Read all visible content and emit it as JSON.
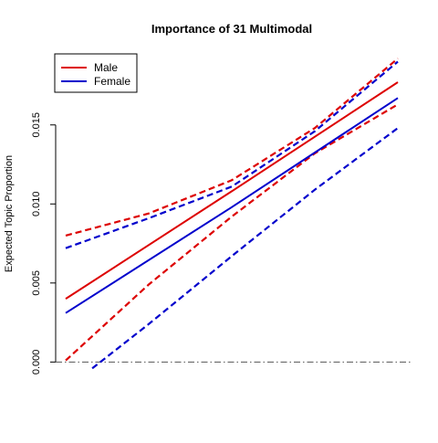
{
  "chart_data": {
    "type": "line",
    "title": "Importance of 31 Multimodal",
    "xlabel": "",
    "ylabel": "Expected Topic Proportion",
    "x_axis_shown": false,
    "xlim": [
      0,
      1
    ],
    "ylim": [
      -0.0005,
      0.0188
    ],
    "yticks": [
      {
        "value": 0.0,
        "label": "0.000"
      },
      {
        "value": 0.005,
        "label": "0.005"
      },
      {
        "value": 0.01,
        "label": "0.010"
      },
      {
        "value": 0.015,
        "label": "0.015"
      }
    ],
    "reference_line": {
      "y": 0.0,
      "style": "dashdot",
      "color": "#555555"
    },
    "grid": false,
    "legend": {
      "position": "top-left",
      "entries": [
        "Male",
        "Female"
      ]
    },
    "series": [
      {
        "name": "Male",
        "color": "#dd0000",
        "mean": [
          [
            0,
            0.004
          ],
          [
            0.5,
            0.0108
          ],
          [
            1,
            0.0177
          ]
        ],
        "upper": [
          [
            0,
            0.008
          ],
          [
            0.25,
            0.0094
          ],
          [
            0.5,
            0.0115
          ],
          [
            0.75,
            0.0148
          ],
          [
            1,
            0.0192
          ]
        ],
        "lower": [
          [
            0,
            0.0001
          ],
          [
            0.25,
            0.0049
          ],
          [
            0.5,
            0.0092
          ],
          [
            0.75,
            0.0132
          ],
          [
            1,
            0.0163
          ]
        ]
      },
      {
        "name": "Female",
        "color": "#0000cc",
        "mean": [
          [
            0,
            0.0031
          ],
          [
            0.5,
            0.0098
          ],
          [
            1,
            0.0167
          ]
        ],
        "upper": [
          [
            0,
            0.0072
          ],
          [
            0.25,
            0.0091
          ],
          [
            0.5,
            0.0111
          ],
          [
            0.75,
            0.0146
          ],
          [
            1,
            0.019
          ]
        ],
        "lower": [
          [
            0.08,
            -0.0004
          ],
          [
            0.25,
            0.0024
          ],
          [
            0.5,
            0.0067
          ],
          [
            0.75,
            0.0109
          ],
          [
            1,
            0.0148
          ]
        ]
      }
    ]
  }
}
